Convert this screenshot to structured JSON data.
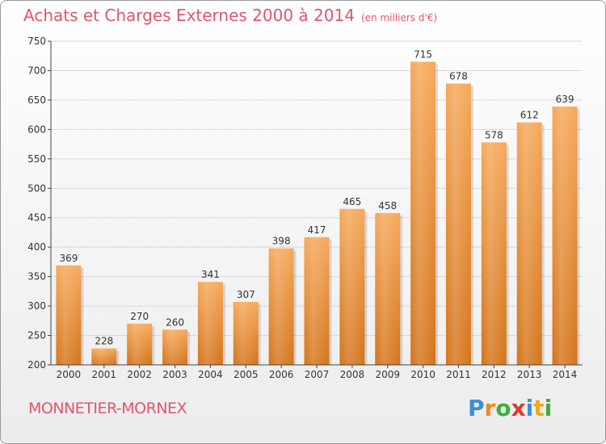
{
  "title": "Achats et Charges Externes 2000 à 2014",
  "subtitle": "(en milliers d'€)",
  "town": "MONNETIER-MORNEX",
  "logo": {
    "letters": [
      {
        "ch": "P",
        "color": "#3b8fd6"
      },
      {
        "ch": "r",
        "color": "#f08a1e"
      },
      {
        "ch": "o",
        "color": "#3fae3a"
      },
      {
        "ch": "x",
        "color": "#e03a2f"
      },
      {
        "ch": "i",
        "color": "#3b8fd6"
      },
      {
        "ch": "t",
        "color": "#f0a81e"
      },
      {
        "ch": "i",
        "color": "#3fae3a"
      }
    ]
  },
  "colors": {
    "bar_top": "#f6a85a",
    "bar_bottom": "#d4741a",
    "title": "#e2566a",
    "grid": "#d8d8d8",
    "axis": "#444444"
  },
  "chart_data": {
    "type": "bar",
    "categories": [
      "2000",
      "2001",
      "2002",
      "2003",
      "2004",
      "2005",
      "2006",
      "2007",
      "2008",
      "2009",
      "2010",
      "2011",
      "2012",
      "2013",
      "2014"
    ],
    "values": [
      369,
      228,
      270,
      260,
      341,
      307,
      398,
      417,
      465,
      458,
      715,
      678,
      578,
      612,
      639
    ],
    "ylim": [
      200,
      750
    ],
    "yticks": [
      200,
      250,
      300,
      350,
      400,
      450,
      500,
      550,
      600,
      650,
      700,
      750
    ],
    "grid": true,
    "legend": "none"
  }
}
